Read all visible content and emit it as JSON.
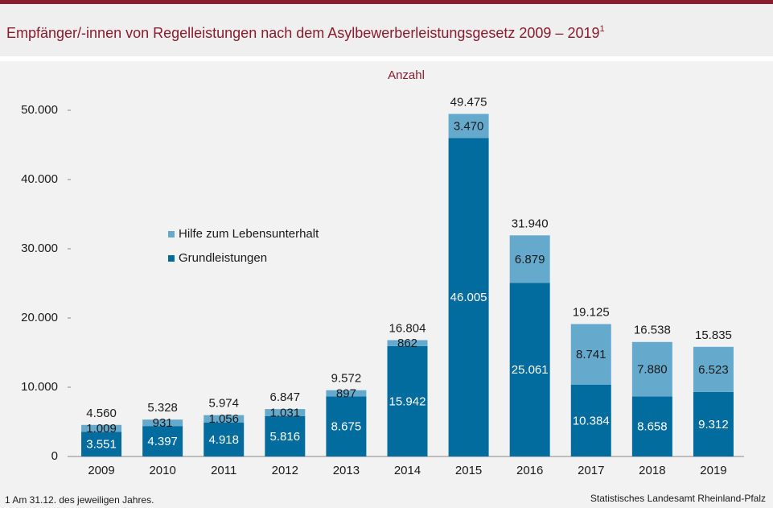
{
  "chart_data": {
    "type": "stacked_bar",
    "title": "Empfänger/-innen von Regelleistungen nach dem Asylbewerberleistungsgesetz 2009 – 2019",
    "title_superscript": "1",
    "y_axis_label": "Anzahl",
    "categories": [
      "2009",
      "2010",
      "2011",
      "2012",
      "2013",
      "2014",
      "2015",
      "2016",
      "2017",
      "2018",
      "2019"
    ],
    "series": [
      {
        "name": "Grundleistungen",
        "color": "#036c9f",
        "values": [
          3551,
          4397,
          4918,
          5816,
          8675,
          15942,
          46005,
          25061,
          10384,
          8658,
          9312
        ],
        "value_labels": [
          "3.551",
          "4.397",
          "4.918",
          "5.816",
          "8.675",
          "15.942",
          "46.005",
          "25.061",
          "10.384",
          "8.658",
          "9.312"
        ]
      },
      {
        "name": "Hilfe zum Lebensunterhalt",
        "color": "#65aacc",
        "values": [
          1009,
          931,
          1056,
          1031,
          897,
          862,
          3470,
          6879,
          8741,
          7880,
          6523
        ],
        "value_labels": [
          "1.009",
          "931",
          "1.056",
          "1.031",
          "897",
          "862",
          "3.470",
          "6.879",
          "8.741",
          "7.880",
          "6.523"
        ]
      }
    ],
    "totals": {
      "values": [
        4560,
        5328,
        5974,
        6847,
        9572,
        16804,
        49475,
        31940,
        19125,
        16538,
        15835
      ],
      "value_labels": [
        "4.560",
        "5.328",
        "5.974",
        "6.847",
        "9.572",
        "16.804",
        "49.475",
        "31.940",
        "19.125",
        "16.538",
        "15.835"
      ]
    },
    "ylim": [
      0,
      55000
    ],
    "yticks": [
      0,
      {
        "value": 10000,
        "label": "10.000"
      },
      {
        "value": 20000,
        "label": "20.000"
      },
      {
        "value": 30000,
        "label": "30.000"
      },
      {
        "value": 40000,
        "label": "40.000"
      },
      {
        "value": 50000,
        "label": "50.000"
      }
    ],
    "grid": false,
    "legend_position": "upper-left",
    "footnote": "1 Am 31.12. des jeweiligen Jahres.",
    "source": "Statistisches Landesamt Rheinland-Pfalz"
  }
}
